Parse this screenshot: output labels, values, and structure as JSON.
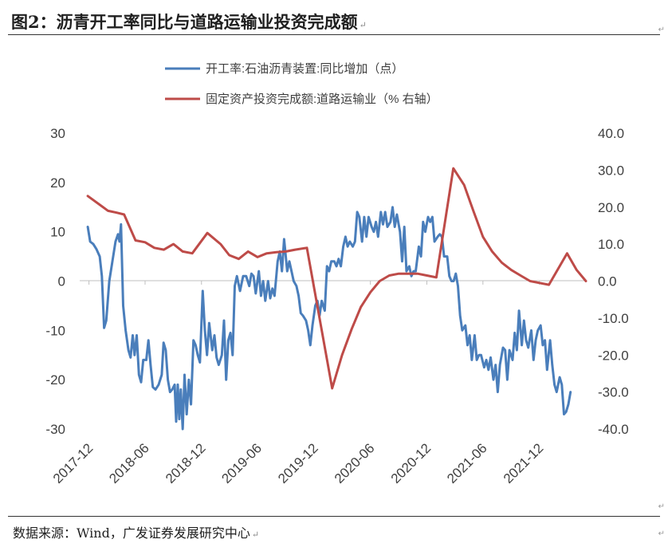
{
  "header": {
    "title": "图2：沥青开工率同比与道路运输业投资完成额",
    "return_mark": "↵"
  },
  "footer": {
    "source": "数据来源：Wind，广发证券发展研究中心"
  },
  "colors": {
    "series_left": "#4A7EBB",
    "series_right": "#BE4B48",
    "axis": "#BFBFBF"
  },
  "chart_data": {
    "type": "line",
    "title": "沥青开工率同比与道路运输业投资完成额",
    "x_axis": {
      "start": "2017-11",
      "end": "2022-05",
      "tick_labels": [
        "2017-12",
        "2018-06",
        "2018-12",
        "2019-06",
        "2019-12",
        "2020-06",
        "2020-12",
        "2021-06",
        "2021-12"
      ]
    },
    "left_axis": {
      "ylim": [
        -30,
        30
      ],
      "ticks": [
        "30",
        "20",
        "10",
        "0",
        "-10",
        "-20",
        "-30"
      ]
    },
    "right_axis": {
      "ylim": [
        -40,
        40
      ],
      "ticks": [
        "40.0",
        "30.0",
        "20.0",
        "10.0",
        "0.0",
        "-10.0",
        "-20.0",
        "-30.0",
        "-40.0"
      ]
    },
    "legend": [
      {
        "name": "开工率:石油沥青装置:同比增加（点）",
        "color": "#4A7EBB"
      },
      {
        "name": "固定资产投资完成额:道路运输业（% 右轴）",
        "color": "#BE4B48"
      }
    ],
    "series": [
      {
        "name": "开工率:石油沥青装置:同比增加（点）",
        "axis": "left",
        "color": "#4A7EBB",
        "points": [
          [
            "2017-11-27",
            11
          ],
          [
            "2017-12-05",
            8
          ],
          [
            "2017-12-15",
            7.5
          ],
          [
            "2017-12-25",
            6.5
          ],
          [
            "2018-01-05",
            5
          ],
          [
            "2018-01-12",
            1
          ],
          [
            "2018-01-19",
            -9.5
          ],
          [
            "2018-01-26",
            -8
          ],
          [
            "2018-02-05",
            0
          ],
          [
            "2018-02-15",
            4
          ],
          [
            "2018-02-25",
            8
          ],
          [
            "2018-03-05",
            9.5
          ],
          [
            "2018-03-10",
            8
          ],
          [
            "2018-03-15",
            11.5
          ],
          [
            "2018-03-22",
            -5
          ],
          [
            "2018-03-30",
            -10
          ],
          [
            "2018-04-08",
            -14
          ],
          [
            "2018-04-15",
            -15.5
          ],
          [
            "2018-04-22",
            -11
          ],
          [
            "2018-04-28",
            -15
          ],
          [
            "2018-05-05",
            -11
          ],
          [
            "2018-05-12",
            -19
          ],
          [
            "2018-05-19",
            -20.5
          ],
          [
            "2018-05-26",
            -16
          ],
          [
            "2018-06-05",
            -16
          ],
          [
            "2018-06-12",
            -12
          ],
          [
            "2018-06-19",
            -17
          ],
          [
            "2018-06-26",
            -21.5
          ],
          [
            "2018-07-05",
            -22
          ],
          [
            "2018-07-15",
            -21
          ],
          [
            "2018-07-25",
            -19
          ],
          [
            "2018-07-31",
            -12.5
          ],
          [
            "2018-08-07",
            -14
          ],
          [
            "2018-08-14",
            -20
          ],
          [
            "2018-08-21",
            -22.5
          ],
          [
            "2018-08-28",
            -22
          ],
          [
            "2018-09-05",
            -21
          ],
          [
            "2018-09-10",
            -28.5
          ],
          [
            "2018-09-15",
            -21
          ],
          [
            "2018-09-20",
            -28
          ],
          [
            "2018-09-25",
            -22
          ],
          [
            "2018-10-01",
            -30
          ],
          [
            "2018-10-07",
            -19
          ],
          [
            "2018-10-14",
            -27
          ],
          [
            "2018-10-21",
            -20
          ],
          [
            "2018-10-28",
            -25
          ],
          [
            "2018-11-05",
            -12
          ],
          [
            "2018-11-12",
            -13
          ],
          [
            "2018-11-19",
            -15
          ],
          [
            "2018-11-26",
            -16.5
          ],
          [
            "2018-12-05",
            -2
          ],
          [
            "2018-12-12",
            -10
          ],
          [
            "2018-12-19",
            -15
          ],
          [
            "2018-12-26",
            -8.5
          ],
          [
            "2019-01-05",
            -14
          ],
          [
            "2019-01-12",
            -11
          ],
          [
            "2019-01-19",
            -15.5
          ],
          [
            "2019-01-26",
            -17
          ],
          [
            "2019-02-05",
            -15
          ],
          [
            "2019-02-12",
            -8
          ],
          [
            "2019-02-19",
            -20
          ],
          [
            "2019-02-26",
            -12
          ],
          [
            "2019-03-05",
            -10.5
          ],
          [
            "2019-03-12",
            -15
          ],
          [
            "2019-03-19",
            -1
          ],
          [
            "2019-03-26",
            1
          ],
          [
            "2019-04-05",
            -2
          ],
          [
            "2019-04-15",
            1
          ],
          [
            "2019-04-25",
            1
          ],
          [
            "2019-05-05",
            -1
          ],
          [
            "2019-05-12",
            1.5
          ],
          [
            "2019-05-19",
            1
          ],
          [
            "2019-05-26",
            -2.5
          ],
          [
            "2019-06-05",
            2
          ],
          [
            "2019-06-12",
            -3
          ],
          [
            "2019-06-19",
            0
          ],
          [
            "2019-06-26",
            -4
          ],
          [
            "2019-07-05",
            0
          ],
          [
            "2019-07-12",
            -3.5
          ],
          [
            "2019-07-19",
            -1.5
          ],
          [
            "2019-07-26",
            -3
          ],
          [
            "2019-08-05",
            4
          ],
          [
            "2019-08-12",
            6
          ],
          [
            "2019-08-19",
            2
          ],
          [
            "2019-08-26",
            8.5
          ],
          [
            "2019-09-05",
            2
          ],
          [
            "2019-09-12",
            4
          ],
          [
            "2019-09-19",
            2
          ],
          [
            "2019-09-26",
            0
          ],
          [
            "2019-10-05",
            -1
          ],
          [
            "2019-10-12",
            -3
          ],
          [
            "2019-10-19",
            -6.5
          ],
          [
            "2019-10-26",
            -7
          ],
          [
            "2019-11-05",
            -8
          ],
          [
            "2019-11-12",
            -10
          ],
          [
            "2019-11-19",
            -13
          ],
          [
            "2019-11-26",
            -9
          ],
          [
            "2019-12-05",
            -5
          ],
          [
            "2019-12-12",
            -4
          ],
          [
            "2019-12-19",
            -7
          ],
          [
            "2019-12-26",
            -4
          ],
          [
            "2020-01-05",
            -6
          ],
          [
            "2020-01-12",
            3
          ],
          [
            "2020-01-19",
            2
          ],
          [
            "2020-01-26",
            4
          ],
          [
            "2020-02-05",
            4
          ],
          [
            "2020-02-12",
            3
          ],
          [
            "2020-02-19",
            4.5
          ],
          [
            "2020-02-26",
            3
          ],
          [
            "2020-03-05",
            7
          ],
          [
            "2020-03-12",
            9
          ],
          [
            "2020-03-19",
            7
          ],
          [
            "2020-03-26",
            8
          ],
          [
            "2020-04-05",
            7
          ],
          [
            "2020-04-12",
            8
          ],
          [
            "2020-04-19",
            14
          ],
          [
            "2020-04-26",
            13
          ],
          [
            "2020-05-05",
            8
          ],
          [
            "2020-05-12",
            13
          ],
          [
            "2020-05-19",
            9
          ],
          [
            "2020-05-26",
            13
          ],
          [
            "2020-06-05",
            11
          ],
          [
            "2020-06-12",
            10
          ],
          [
            "2020-06-19",
            12
          ],
          [
            "2020-06-26",
            9
          ],
          [
            "2020-07-05",
            14
          ],
          [
            "2020-07-12",
            11.5
          ],
          [
            "2020-07-19",
            14
          ],
          [
            "2020-07-26",
            11
          ],
          [
            "2020-08-05",
            12
          ],
          [
            "2020-08-12",
            15
          ],
          [
            "2020-08-19",
            11
          ],
          [
            "2020-08-26",
            13.5
          ],
          [
            "2020-09-05",
            10
          ],
          [
            "2020-09-12",
            4
          ],
          [
            "2020-09-19",
            11
          ],
          [
            "2020-09-26",
            2
          ],
          [
            "2020-10-05",
            3
          ],
          [
            "2020-10-12",
            1
          ],
          [
            "2020-10-19",
            2
          ],
          [
            "2020-10-26",
            2
          ],
          [
            "2020-11-05",
            7
          ],
          [
            "2020-11-12",
            5
          ],
          [
            "2020-11-19",
            12
          ],
          [
            "2020-11-26",
            10
          ],
          [
            "2020-12-05",
            13
          ],
          [
            "2020-12-12",
            12
          ],
          [
            "2020-12-19",
            13
          ],
          [
            "2020-12-26",
            8
          ],
          [
            "2021-01-05",
            9
          ],
          [
            "2021-01-12",
            9.5
          ],
          [
            "2021-01-19",
            9
          ],
          [
            "2021-01-26",
            5
          ],
          [
            "2021-02-05",
            5
          ],
          [
            "2021-02-12",
            1
          ],
          [
            "2021-02-19",
            0
          ],
          [
            "2021-02-26",
            0
          ],
          [
            "2021-03-05",
            1.5
          ],
          [
            "2021-03-12",
            -1
          ],
          [
            "2021-03-19",
            -7
          ],
          [
            "2021-03-26",
            -10
          ],
          [
            "2021-04-05",
            -9
          ],
          [
            "2021-04-12",
            -13
          ],
          [
            "2021-04-19",
            -11
          ],
          [
            "2021-04-26",
            -16
          ],
          [
            "2021-05-05",
            -11
          ],
          [
            "2021-05-12",
            -16
          ],
          [
            "2021-05-19",
            -15
          ],
          [
            "2021-05-26",
            -15
          ],
          [
            "2021-06-05",
            -17.5
          ],
          [
            "2021-06-12",
            -16
          ],
          [
            "2021-06-19",
            -18
          ],
          [
            "2021-06-26",
            -15.5
          ],
          [
            "2021-07-05",
            -20
          ],
          [
            "2021-07-12",
            -17
          ],
          [
            "2021-07-19",
            -22.5
          ],
          [
            "2021-07-26",
            -17
          ],
          [
            "2021-08-05",
            -13.5
          ],
          [
            "2021-08-12",
            -14
          ],
          [
            "2021-08-19",
            -20
          ],
          [
            "2021-08-26",
            -14
          ],
          [
            "2021-09-05",
            -16
          ],
          [
            "2021-09-12",
            -10.5
          ],
          [
            "2021-09-19",
            -14
          ],
          [
            "2021-09-26",
            -6
          ],
          [
            "2021-10-05",
            -13
          ],
          [
            "2021-10-12",
            -8
          ],
          [
            "2021-10-19",
            -12
          ],
          [
            "2021-10-26",
            -13.5
          ],
          [
            "2021-11-05",
            -10
          ],
          [
            "2021-11-12",
            -16
          ],
          [
            "2021-11-19",
            -12
          ],
          [
            "2021-11-26",
            -10
          ],
          [
            "2021-12-05",
            -9
          ],
          [
            "2021-12-12",
            -13
          ],
          [
            "2021-12-19",
            -12
          ],
          [
            "2021-12-26",
            -18
          ],
          [
            "2022-01-05",
            -12
          ],
          [
            "2022-01-12",
            -17
          ],
          [
            "2022-01-19",
            -21
          ],
          [
            "2022-01-26",
            -22.5
          ],
          [
            "2022-02-05",
            -19.5
          ],
          [
            "2022-02-12",
            -21
          ],
          [
            "2022-02-19",
            -27
          ],
          [
            "2022-02-26",
            -26.5
          ],
          [
            "2022-03-05",
            -25
          ],
          [
            "2022-03-12",
            -22.5
          ]
        ]
      },
      {
        "name": "固定资产投资完成额:道路运输业（% 右轴）",
        "axis": "right",
        "color": "#BE4B48",
        "points": [
          [
            "2017-11-27",
            23
          ],
          [
            "2018-02-01",
            19
          ],
          [
            "2018-03-01",
            18.5
          ],
          [
            "2018-03-25",
            18
          ],
          [
            "2018-05-01",
            11
          ],
          [
            "2018-06-01",
            10.5
          ],
          [
            "2018-07-01",
            9
          ],
          [
            "2018-08-01",
            8.5
          ],
          [
            "2018-09-01",
            10
          ],
          [
            "2018-10-01",
            8
          ],
          [
            "2018-11-01",
            7.5
          ],
          [
            "2018-12-20",
            13
          ],
          [
            "2019-02-01",
            10
          ],
          [
            "2019-03-01",
            7
          ],
          [
            "2019-04-01",
            6
          ],
          [
            "2019-05-01",
            8
          ],
          [
            "2019-06-01",
            6.5
          ],
          [
            "2019-07-01",
            7.5
          ],
          [
            "2019-08-01",
            7.8
          ],
          [
            "2019-09-01",
            8
          ],
          [
            "2019-10-01",
            8.5
          ],
          [
            "2019-11-08",
            9
          ],
          [
            "2020-01-29",
            -29
          ],
          [
            "2020-03-01",
            -20
          ],
          [
            "2020-04-01",
            -13
          ],
          [
            "2020-05-01",
            -7
          ],
          [
            "2020-06-01",
            -3
          ],
          [
            "2020-07-01",
            0
          ],
          [
            "2020-08-01",
            1.5
          ],
          [
            "2020-09-01",
            2
          ],
          [
            "2020-10-01",
            2
          ],
          [
            "2020-11-01",
            2
          ],
          [
            "2020-12-01",
            1.5
          ],
          [
            "2021-01-01",
            1
          ],
          [
            "2021-02-25",
            30.5
          ],
          [
            "2021-04-01",
            26
          ],
          [
            "2021-05-01",
            19
          ],
          [
            "2021-06-01",
            12
          ],
          [
            "2021-07-01",
            8
          ],
          [
            "2021-08-01",
            5
          ],
          [
            "2021-09-01",
            3
          ],
          [
            "2021-10-01",
            1.5
          ],
          [
            "2021-11-01",
            0
          ],
          [
            "2021-12-01",
            -0.5
          ],
          [
            "2022-01-01",
            -1
          ],
          [
            "2022-03-01",
            7.5
          ],
          [
            "2022-04-01",
            3
          ],
          [
            "2022-05-01",
            0
          ]
        ]
      }
    ]
  }
}
